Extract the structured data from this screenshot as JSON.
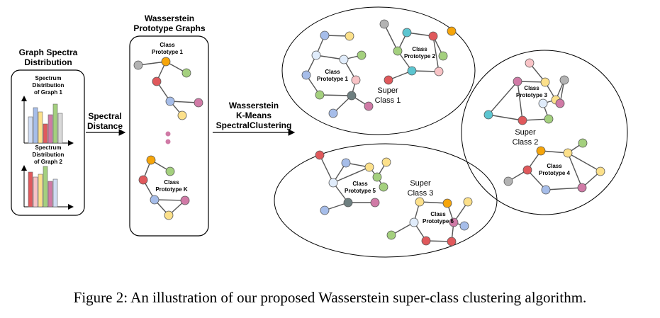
{
  "panels": {
    "spectra": {
      "title_line1": "Graph Spectra",
      "title_line2": "Distribution",
      "chart1": [
        "Spectrum",
        "Distribution",
        "of Graph 1"
      ],
      "chart2": [
        "Spectrum",
        "Distribution",
        "of Graph 2"
      ]
    },
    "arrow1": {
      "line1": "Spectral",
      "line2": "Distance"
    },
    "prototypes": {
      "title_line1": "Wasserstein",
      "title_line2": "Prototype Graphs",
      "proto1": [
        "Class",
        "Prototype 1"
      ],
      "protoK": [
        "Class",
        "Prototype K"
      ]
    },
    "arrow2": {
      "line1": "Wasserstein",
      "line2": "K-Means",
      "line3": "SpectralClustering"
    },
    "superclasses": {
      "sc1": {
        "line1": "Super",
        "line2": "Class 1",
        "protoA": [
          "Class",
          "Prototype 1"
        ],
        "protoB": [
          "Class",
          "Prototype 2"
        ]
      },
      "sc2": {
        "line1": "Super",
        "line2": "Class 2",
        "protoA": [
          "Class",
          "Prototype 3"
        ],
        "protoB": [
          "Class",
          "Prototype 4"
        ]
      },
      "sc3": {
        "line1": "Super",
        "line2": "Class 3",
        "protoA": [
          "Class",
          "Prototype 5"
        ],
        "protoB": [
          "Class",
          "Prototype 6"
        ]
      }
    }
  },
  "caption": "Figure 2: An illustration of our proposed Wasserstein super-class clustering algorithm.",
  "colors": {
    "gray": "#b3b3b3",
    "orange": "#f6a50a",
    "green": "#a4d07e",
    "red": "#e0595c",
    "blue": "#a6bde9",
    "pink": "#d07aa6",
    "yellow": "#fce08a",
    "lightblue": "#e0ecfb",
    "teal": "#5cc5d0",
    "darkgray": "#6e7f80",
    "lightpink": "#f8c3c6"
  }
}
